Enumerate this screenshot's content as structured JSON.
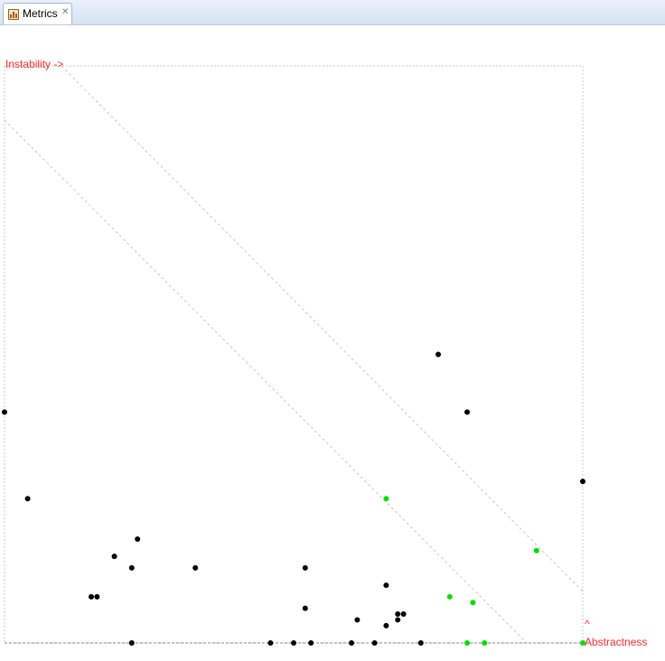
{
  "tab": {
    "title": "Metrics",
    "icon": "metrics-view-icon",
    "close_glyph": "✕"
  },
  "chart_data": {
    "type": "scatter",
    "x_label": "Instability ->",
    "y_label": "Abstractness",
    "y_arrow": "^",
    "xlim": [
      0,
      1
    ],
    "ylim": [
      0,
      1
    ],
    "grid": false,
    "colors": {
      "package": "#000000",
      "highlight": "#00e000",
      "axis_label": "#ff2a2a",
      "guide": "#c8c8c8"
    },
    "points": [
      {
        "x": 0.0,
        "y": 0.4,
        "color": "#000000"
      },
      {
        "x": 0.04,
        "y": 0.25,
        "color": "#000000"
      },
      {
        "x": 0.15,
        "y": 0.08,
        "color": "#000000"
      },
      {
        "x": 0.16,
        "y": 0.08,
        "color": "#000000"
      },
      {
        "x": 0.19,
        "y": 0.15,
        "color": "#000000"
      },
      {
        "x": 0.22,
        "y": 0.13,
        "color": "#000000"
      },
      {
        "x": 0.23,
        "y": 0.18,
        "color": "#000000"
      },
      {
        "x": 0.22,
        "y": 0.0,
        "color": "#000000"
      },
      {
        "x": 0.33,
        "y": 0.13,
        "color": "#000000"
      },
      {
        "x": 0.46,
        "y": 0.0,
        "color": "#000000"
      },
      {
        "x": 0.5,
        "y": 0.0,
        "color": "#000000"
      },
      {
        "x": 0.52,
        "y": 0.13,
        "color": "#000000"
      },
      {
        "x": 0.52,
        "y": 0.06,
        "color": "#000000"
      },
      {
        "x": 0.53,
        "y": 0.0,
        "color": "#000000"
      },
      {
        "x": 0.6,
        "y": 0.0,
        "color": "#000000"
      },
      {
        "x": 0.61,
        "y": 0.04,
        "color": "#000000"
      },
      {
        "x": 0.64,
        "y": 0.0,
        "color": "#000000"
      },
      {
        "x": 0.66,
        "y": 0.1,
        "color": "#000000"
      },
      {
        "x": 0.66,
        "y": 0.03,
        "color": "#000000"
      },
      {
        "x": 0.68,
        "y": 0.05,
        "color": "#000000"
      },
      {
        "x": 0.68,
        "y": 0.04,
        "color": "#000000"
      },
      {
        "x": 0.69,
        "y": 0.05,
        "color": "#000000"
      },
      {
        "x": 0.72,
        "y": 0.0,
        "color": "#000000"
      },
      {
        "x": 0.75,
        "y": 0.5,
        "color": "#000000"
      },
      {
        "x": 0.8,
        "y": 0.4,
        "color": "#000000"
      },
      {
        "x": 1.0,
        "y": 0.28,
        "color": "#000000"
      },
      {
        "x": 0.66,
        "y": 0.25,
        "color": "#00e000"
      },
      {
        "x": 0.77,
        "y": 0.08,
        "color": "#00e000"
      },
      {
        "x": 0.81,
        "y": 0.07,
        "color": "#00e000"
      },
      {
        "x": 0.8,
        "y": 0.0,
        "color": "#00e000"
      },
      {
        "x": 0.83,
        "y": 0.0,
        "color": "#00e000"
      },
      {
        "x": 0.92,
        "y": 0.16,
        "color": "#00e000"
      },
      {
        "x": 1.0,
        "y": 0.0,
        "color": "#00e000"
      }
    ]
  }
}
